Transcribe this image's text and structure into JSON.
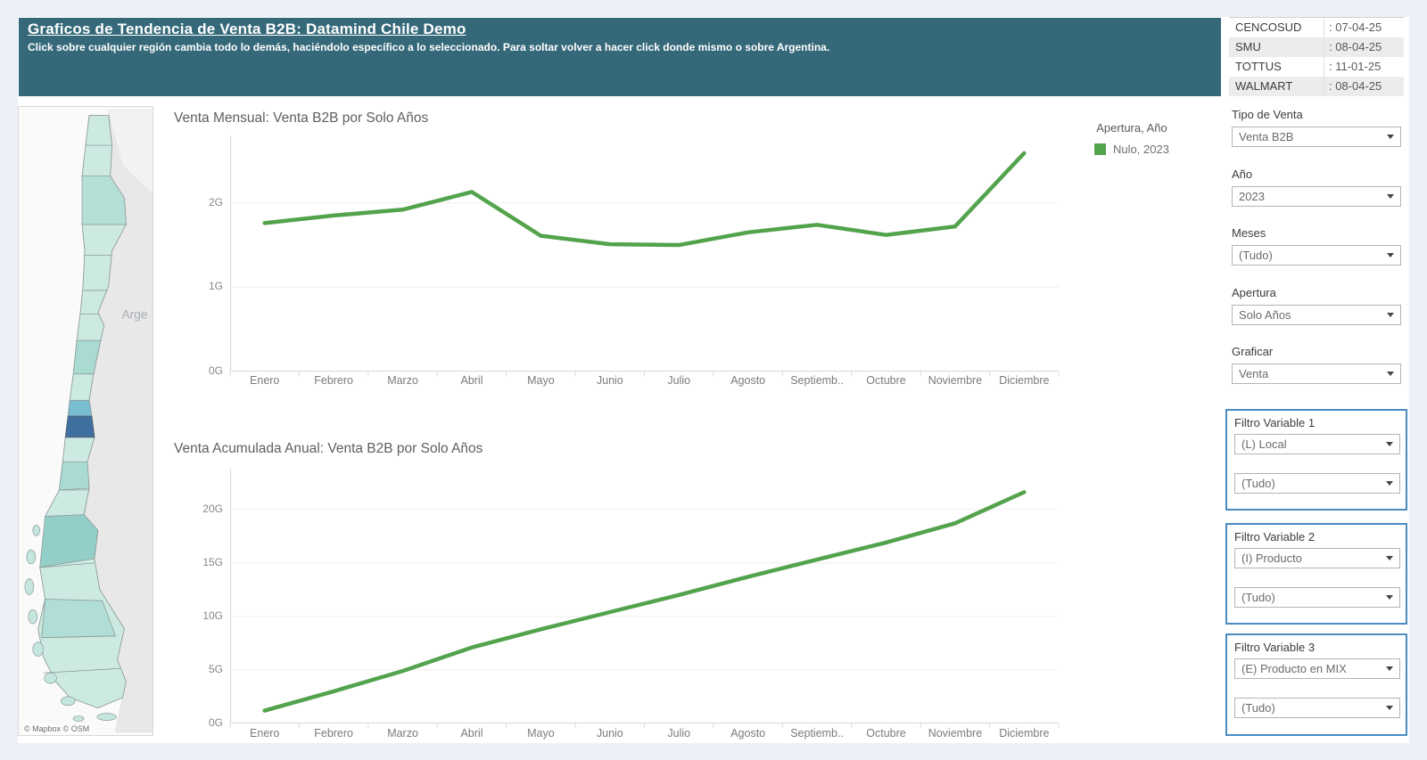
{
  "banner": {
    "title": "Graficos de Tendencia de Venta B2B: Datamind Chile Demo",
    "subtitle": "Click sobre cualquier región cambia todo lo demás, haciéndolo específico a lo seleccionado. Para soltar volver a hacer click donde mismo o sobre Argentina."
  },
  "update_table": {
    "rows": [
      {
        "name": "CENCOSUD",
        "value": ": 07-04-25"
      },
      {
        "name": "SMU",
        "value": ": 08-04-25"
      },
      {
        "name": "TOTTUS",
        "value": ": 11-01-25"
      },
      {
        "name": "WALMART",
        "value": ": 08-04-25"
      }
    ]
  },
  "map": {
    "region_label": "Arge",
    "attribution": "© Mapbox  © OSM"
  },
  "legend": {
    "title": "Apertura, Año",
    "items": [
      {
        "label": "Nulo, 2023",
        "color": "#53a34c"
      }
    ]
  },
  "sidebar": {
    "filters": [
      {
        "label": "Tipo de Venta",
        "value": "Venta B2B"
      },
      {
        "label": "Año",
        "value": "2023"
      },
      {
        "label": "Meses",
        "value": "(Tudo)"
      },
      {
        "label": "Apertura",
        "value": "Solo Años"
      },
      {
        "label": "Graficar",
        "value": "Venta"
      }
    ],
    "groups": [
      {
        "title": "Filtro Variable 1",
        "select1": "(L) Local",
        "select2": "(Tudo)"
      },
      {
        "title": "Filtro Variable 2",
        "select1": "(I) Producto",
        "select2": "(Tudo)"
      },
      {
        "title": "Filtro Variable 3",
        "select1": "(E) Producto en MIX",
        "select2": "(Tudo)"
      }
    ]
  },
  "chart_data": [
    {
      "type": "line",
      "title": "Venta Mensual: Venta B2B por Solo Años",
      "categories": [
        "Enero",
        "Febrero",
        "Marzo",
        "Abril",
        "Mayo",
        "Junio",
        "Julio",
        "Agosto",
        "Septiemb..",
        "Octubre",
        "Noviembre",
        "Diciembre"
      ],
      "series": [
        {
          "name": "Nulo, 2023",
          "values": [
            1.76,
            1.85,
            1.92,
            2.13,
            1.61,
            1.51,
            1.5,
            1.65,
            1.74,
            1.62,
            1.72,
            2.59
          ]
        }
      ],
      "unit": "G",
      "ylim": [
        0,
        2.8
      ],
      "yticks": [
        {
          "value": 0,
          "label": "0G"
        },
        {
          "value": 1,
          "label": "1G"
        },
        {
          "value": 2,
          "label": "2G"
        }
      ],
      "color": "#53a34c",
      "grid": true,
      "legend_position": "right"
    },
    {
      "type": "line",
      "title": "Venta Acumulada Anual: Venta B2B por  Solo Años",
      "categories": [
        "Enero",
        "Febrero",
        "Marzo",
        "Abril",
        "Mayo",
        "Junio",
        "Julio",
        "Agosto",
        "Septiemb..",
        "Octubre",
        "Noviembre",
        "Diciembre"
      ],
      "series": [
        {
          "name": "Nulo, 2023",
          "values": [
            1.2,
            3.0,
            4.9,
            7.1,
            8.8,
            10.4,
            12.0,
            13.7,
            15.3,
            16.9,
            18.7,
            21.6
          ]
        }
      ],
      "unit": "G",
      "ylim": [
        0,
        23.8
      ],
      "yticks": [
        {
          "value": 0,
          "label": "0G"
        },
        {
          "value": 5,
          "label": "5G"
        },
        {
          "value": 10,
          "label": "10G"
        },
        {
          "value": 15,
          "label": "15G"
        },
        {
          "value": 20,
          "label": "20G"
        }
      ],
      "color": "#53a34c",
      "grid": true
    }
  ]
}
